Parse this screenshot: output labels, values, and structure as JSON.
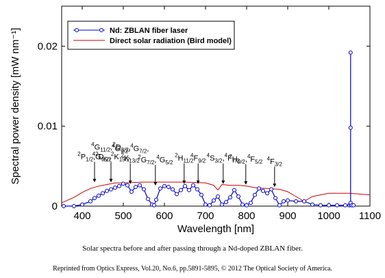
{
  "chart_data": {
    "type": "line",
    "xlabel": "Wavelength [nm]",
    "ylabel": "Spectral power density [mW nm⁻¹]",
    "xlim": [
      350,
      1100
    ],
    "ylim": [
      0,
      0.025
    ],
    "xticks": [
      400,
      500,
      600,
      700,
      800,
      900,
      1000,
      1100
    ],
    "xtick_labels": [
      "400",
      "500",
      "600",
      "700",
      "800",
      "900",
      "1000",
      "1100"
    ],
    "yticks": [
      0,
      0.01,
      0.02
    ],
    "ytick_labels": [
      "0",
      "0.01",
      "0.02"
    ],
    "grid": false,
    "legend_position": "top-left",
    "series": [
      {
        "name": "Nd: ZBLAN fiber laser",
        "color": "#0000cc",
        "marker": "open-circle",
        "x": [
          355,
          380,
          400,
          420,
          430,
          440,
          450,
          460,
          470,
          480,
          490,
          500,
          510,
          520,
          530,
          540,
          550,
          560,
          570,
          575,
          580,
          590,
          600,
          610,
          620,
          630,
          640,
          650,
          660,
          670,
          680,
          690,
          700,
          710,
          720,
          730,
          740,
          750,
          760,
          770,
          780,
          790,
          800,
          810,
          820,
          830,
          840,
          850,
          860,
          870,
          880,
          890,
          900,
          920,
          940,
          960,
          980,
          1000,
          1020,
          1040,
          1050,
          1053,
          1053,
          1053,
          1053,
          1056,
          1060
        ],
        "y": [
          0,
          0,
          0.0002,
          0.0006,
          0.001,
          0.0013,
          0.0016,
          0.0019,
          0.0021,
          0.0023,
          0.0025,
          0.0028,
          0.0026,
          0.0018,
          0.0024,
          0.0026,
          0.0021,
          0.0009,
          0.0002,
          0.0001,
          0.0008,
          0.0022,
          0.0025,
          0.0024,
          0.0021,
          0.0015,
          0.002,
          0.0025,
          0.002,
          0.0026,
          0.0021,
          0.0014,
          0.0002,
          0.0001,
          0.0007,
          0.0012,
          0.0002,
          0.0005,
          0.0011,
          0.002,
          0.0012,
          0.0002,
          0.0001,
          0.0004,
          0.0014,
          0.0022,
          0.0019,
          0.0016,
          0.0021,
          0.001,
          0.0001,
          0.0006,
          0.0007,
          0.0006,
          0.0006,
          0.0002,
          0.0001,
          0.0001,
          0.0001,
          0.0001,
          0.0001,
          0.0002,
          0.0098,
          0.0192,
          0.0004,
          0.0001,
          0.0001
        ]
      },
      {
        "name": "Direct solar radiation (Bird model)",
        "color": "#cc0000",
        "marker": "none",
        "x": [
          350,
          380,
          400,
          420,
          440,
          460,
          480,
          500,
          550,
          600,
          650,
          700,
          720,
          730,
          740,
          760,
          780,
          800,
          820,
          850,
          880,
          900,
          920,
          940,
          960,
          1000,
          1050,
          1100
        ],
        "y": [
          0.0004,
          0.0011,
          0.0017,
          0.0022,
          0.0025,
          0.0027,
          0.0029,
          0.0029,
          0.003,
          0.003,
          0.003,
          0.0029,
          0.0026,
          0.002,
          0.0027,
          0.0026,
          0.0026,
          0.0025,
          0.0023,
          0.0022,
          0.0021,
          0.0018,
          0.0012,
          0.0006,
          0.0012,
          0.0016,
          0.0016,
          0.0014
        ]
      }
    ],
    "annotations": [
      {
        "x": 430,
        "y": 0.0028,
        "lines": [
          [
            {
              "sup": "2",
              "t": "P"
            },
            {
              "sub": "1/2",
              "t": ","
            },
            {
              "sup": "2",
              "t": "D"
            },
            {
              "sub": "5/2"
            }
          ]
        ]
      },
      {
        "x": 470,
        "y": 0.0028,
        "lines": [
          [
            {
              "sup": "4",
              "t": "G"
            },
            {
              "sub": "11/2",
              "t": ","
            },
            {
              "sup": "2",
              "t": "D"
            },
            {
              "sub": "3/2",
              "t": ","
            }
          ],
          [
            {
              "sup": "4",
              "t": "G"
            },
            {
              "sub": "9/2",
              "t": ","
            },
            {
              "sup": "2",
              "t": "K"
            },
            {
              "sub": "15/2"
            }
          ]
        ]
      },
      {
        "x": 517,
        "y": 0.0026,
        "lines": [
          [
            {
              "sup": "4",
              "t": "G"
            },
            {
              "sub": "9/2",
              "t": ","
            },
            {
              "sup": "4",
              "t": "G"
            },
            {
              "sub": "7/2",
              "t": ","
            }
          ],
          [
            {
              "sup": "2",
              "t": "K"
            },
            {
              "sub": "13/2"
            }
          ]
        ]
      },
      {
        "x": 578,
        "y": 0.0024,
        "lines": [
          [
            {
              "sup": "2",
              "t": "G"
            },
            {
              "sub": "7/2",
              "t": ","
            },
            {
              "sup": "4",
              "t": "G"
            },
            {
              "sub": "5/2"
            }
          ]
        ]
      },
      {
        "x": 648,
        "y": 0.0026,
        "lines": [
          [
            {
              "sup": "2",
              "t": "H"
            },
            {
              "sub": "11/2"
            }
          ]
        ]
      },
      {
        "x": 682,
        "y": 0.0026,
        "lines": [
          [
            {
              "sup": "4",
              "t": "F"
            },
            {
              "sub": "9/2"
            }
          ]
        ]
      },
      {
        "x": 743,
        "y": 0.0026,
        "lines": [
          [
            {
              "sup": "4",
              "t": "S"
            },
            {
              "sub": "3/2",
              "t": ","
            },
            {
              "sup": "4",
              "t": "F"
            },
            {
              "sub": "7/2"
            }
          ]
        ]
      },
      {
        "x": 798,
        "y": 0.0025,
        "lines": [
          [
            {
              "sup": "2",
              "t": "H"
            },
            {
              "sub": "9/2",
              "t": ","
            },
            {
              "sup": "4",
              "t": "F"
            },
            {
              "sub": "5/2"
            }
          ]
        ]
      },
      {
        "x": 868,
        "y": 0.0022,
        "lines": [
          [
            {
              "sup": "4",
              "t": "F"
            },
            {
              "sub": "3/2"
            }
          ]
        ]
      }
    ]
  },
  "caption": "Solar spectra before and after passing through a Nd-doped ZBLAN fiber.",
  "credit": "Reprinted from Optics Express, Vol.20, No.6, pp.5891-5895, © 2012 The Optical  Society of America."
}
